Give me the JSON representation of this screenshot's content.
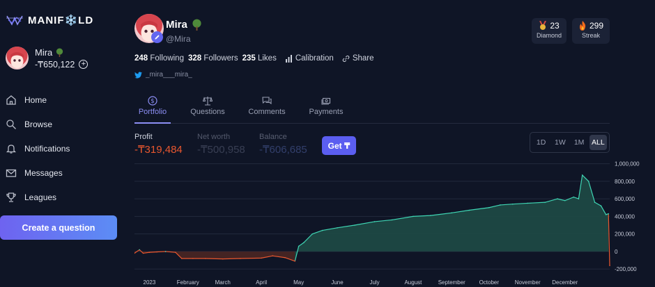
{
  "sidebar": {
    "logo_text": "MANIF❄️LD",
    "user_name": "Mira",
    "user_balance": "-₸650,122",
    "nav": [
      {
        "label": "Home",
        "icon": "home-icon"
      },
      {
        "label": "Browse",
        "icon": "search-icon"
      },
      {
        "label": "Notifications",
        "icon": "bell-icon"
      },
      {
        "label": "Messages",
        "icon": "mail-icon"
      },
      {
        "label": "Leagues",
        "icon": "trophy-icon"
      }
    ],
    "cta_label": "Create a question"
  },
  "profile": {
    "name": "Mira",
    "handle": "@Mira",
    "badges": [
      {
        "value": "23",
        "label": "Diamond",
        "icon": "medal-icon"
      },
      {
        "value": "299",
        "label": "Streak",
        "icon": "fire-icon"
      }
    ],
    "following_count": "248",
    "following_label": "Following",
    "followers_count": "328",
    "followers_label": "Followers",
    "likes_count": "235",
    "likes_label": "Likes",
    "calibration_label": "Calibration",
    "share_label": "Share",
    "twitter": "_mira___mira_"
  },
  "tabs": [
    {
      "label": "Portfolio",
      "icon": "dollar-icon",
      "active": true
    },
    {
      "label": "Questions",
      "icon": "scale-icon",
      "active": false
    },
    {
      "label": "Comments",
      "icon": "chat-icon",
      "active": false
    },
    {
      "label": "Payments",
      "icon": "cash-icon",
      "active": false
    }
  ],
  "metrics": {
    "profit_label": "Profit",
    "profit_value": "-₸319,484",
    "networth_label": "Net worth",
    "networth_value": "-₸500,958",
    "balance_label": "Balance",
    "balance_value": "-₸606,685",
    "get_label": "Get ₸"
  },
  "range_options": [
    "1D",
    "1W",
    "1M",
    "ALL"
  ],
  "range_selected": "ALL",
  "colors": {
    "accent": "#6366f1",
    "loss": "#e8572f",
    "gain_line": "#3fd6b4",
    "gain_fill": "#1e4a46",
    "loss_fill": "#4a2624"
  },
  "chart_data": {
    "type": "area",
    "title": "",
    "xlabel": "",
    "ylabel": "",
    "x_ticks": [
      "2023",
      "February",
      "March",
      "April",
      "May",
      "June",
      "July",
      "August",
      "September",
      "October",
      "November",
      "December"
    ],
    "y_ticks": [
      "1,000,000",
      "800,000",
      "600,000",
      "400,000",
      "200,000",
      "0",
      "-200,000"
    ],
    "ylim": [
      -270000,
      1060000
    ],
    "grid": true,
    "series": [
      {
        "x": [
          "2022-12-20",
          "2022-12-24",
          "2022-12-27",
          "2023-01-01",
          "2023-01-07",
          "2023-01-14",
          "2023-01-22",
          "2023-01-27",
          "2023-02-05",
          "2023-02-15",
          "2023-03-01",
          "2023-03-15",
          "2023-04-01",
          "2023-04-10",
          "2023-04-20",
          "2023-04-28",
          "2023-05-01",
          "2023-05-05",
          "2023-05-12",
          "2023-05-20",
          "2023-06-01",
          "2023-06-15",
          "2023-07-01",
          "2023-07-15",
          "2023-08-01",
          "2023-08-15",
          "2023-09-01",
          "2023-09-15",
          "2023-10-01",
          "2023-10-10",
          "2023-10-20",
          "2023-11-01",
          "2023-11-15",
          "2023-11-25",
          "2023-12-01",
          "2023-12-08",
          "2023-12-12",
          "2023-12-15",
          "2023-12-20",
          "2023-12-25",
          "2023-12-30",
          "2024-01-03",
          "2024-01-05",
          "2024-01-06"
        ],
        "y": [
          -20000,
          20000,
          -20000,
          -10000,
          -5000,
          0,
          -10000,
          -80000,
          -80000,
          -80000,
          -85000,
          -80000,
          -75000,
          -50000,
          -70000,
          -110000,
          60000,
          100000,
          200000,
          240000,
          270000,
          300000,
          340000,
          360000,
          400000,
          410000,
          440000,
          470000,
          500000,
          530000,
          540000,
          550000,
          560000,
          600000,
          580000,
          620000,
          600000,
          870000,
          800000,
          560000,
          520000,
          420000,
          430000,
          -160000
        ]
      }
    ]
  }
}
